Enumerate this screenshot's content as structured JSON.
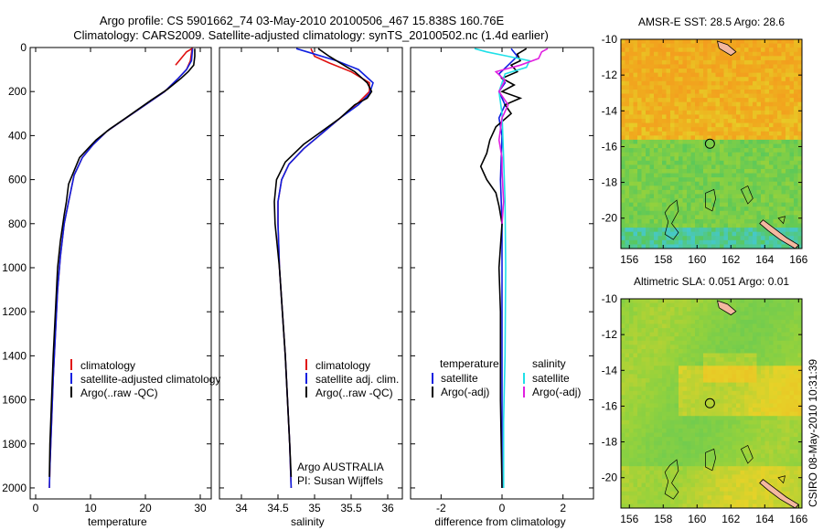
{
  "figure": {
    "title_line1": "Argo profile: CS 5901662_74 03-May-2010 20100506_467 15.838S 160.76E",
    "title_line2": "Climatology: CARS2009. Satellite-adjusted climatology: synTS_20100502.nc (1.4d earlier)",
    "footer_vertical": "CSIRO 08-May-2010 10:31:39",
    "credit_line1": "Argo AUSTRALIA",
    "credit_line2": "PI: Susan Wijffels"
  },
  "colors": {
    "climatology": "#e01010",
    "satellite": "#1020e0",
    "argo": "#000000",
    "salinity_satellite": "#20e0e8",
    "salinity_argo": "#e020e0"
  },
  "chart_data": [
    {
      "type": "line",
      "xlabel": "temperature",
      "xlim": [
        -1,
        32
      ],
      "ylim": [
        2050,
        0
      ],
      "xticks": [
        "0",
        "10",
        "20",
        "30"
      ],
      "xtick_values": [
        0,
        10,
        20,
        30
      ],
      "yticks": [
        "0",
        "200",
        "400",
        "600",
        "800",
        "1000",
        "1200",
        "1400",
        "1600",
        "1800",
        "2000"
      ],
      "ytick_values": [
        0,
        200,
        400,
        600,
        800,
        1000,
        1200,
        1400,
        1600,
        1800,
        2000
      ],
      "legend": [
        "climatology",
        "satellite-adjusted climatology",
        "Argo(..raw -QC)"
      ],
      "series": [
        {
          "name": "climatology",
          "color_key": "climatology",
          "points": [
            [
              25.5,
              80
            ],
            [
              26.5,
              50
            ],
            [
              27.5,
              20
            ],
            [
              28.5,
              5
            ],
            [
              28.2,
              60
            ],
            [
              27.5,
              100
            ],
            [
              26,
              140
            ],
            [
              23.5,
              200
            ],
            [
              20,
              260
            ],
            [
              16.5,
              320
            ],
            [
              13,
              380
            ],
            [
              10.5,
              440
            ],
            [
              8.5,
              500
            ],
            [
              7,
              580
            ],
            [
              6,
              700
            ],
            [
              5.2,
              800
            ],
            [
              4.5,
              950
            ],
            [
              4,
              1100
            ],
            [
              3.6,
              1300
            ],
            [
              3.2,
              1500
            ],
            [
              2.9,
              1700
            ],
            [
              2.6,
              1900
            ],
            [
              2.5,
              2000
            ]
          ]
        },
        {
          "name": "satellite-adjusted climatology",
          "color_key": "satellite",
          "points": [
            [
              28.6,
              5
            ],
            [
              28.4,
              60
            ],
            [
              27.5,
              100
            ],
            [
              26,
              140
            ],
            [
              23.5,
              200
            ],
            [
              20,
              260
            ],
            [
              16.5,
              320
            ],
            [
              13,
              380
            ],
            [
              10.5,
              440
            ],
            [
              8.5,
              500
            ],
            [
              7,
              580
            ],
            [
              6,
              700
            ],
            [
              5.2,
              800
            ],
            [
              4.5,
              950
            ],
            [
              4,
              1100
            ],
            [
              3.6,
              1300
            ],
            [
              3.2,
              1500
            ],
            [
              2.9,
              1700
            ],
            [
              2.6,
              1900
            ],
            [
              2.5,
              2000
            ]
          ]
        },
        {
          "name": "Argo(..raw -QC)",
          "color_key": "argo",
          "points": [
            [
              29,
              5
            ],
            [
              29,
              40
            ],
            [
              28.8,
              80
            ],
            [
              27.8,
              110
            ],
            [
              26.5,
              140
            ],
            [
              24,
              190
            ],
            [
              21,
              240
            ],
            [
              17,
              310
            ],
            [
              13.5,
              370
            ],
            [
              11,
              420
            ],
            [
              9.5,
              460
            ],
            [
              8,
              500
            ],
            [
              7,
              560
            ],
            [
              6,
              620
            ],
            [
              5.6,
              700
            ],
            [
              5.2,
              760
            ],
            [
              4.5,
              880
            ],
            [
              4,
              1000
            ],
            [
              3.6,
              1200
            ],
            [
              3.2,
              1400
            ],
            [
              2.9,
              1600
            ],
            [
              2.6,
              1800
            ],
            [
              2.5,
              1950
            ]
          ]
        }
      ]
    },
    {
      "type": "line",
      "xlabel": "salinity",
      "xlim": [
        33.7,
        36.2
      ],
      "ylim": [
        2050,
        0
      ],
      "xticks": [
        "34",
        "34.5",
        "35",
        "35.5",
        "36"
      ],
      "xtick_values": [
        34,
        34.5,
        35,
        35.5,
        36
      ],
      "legend": [
        "climatology",
        "satellite adj. clim.",
        "Argo(..raw -QC)"
      ],
      "series": [
        {
          "name": "climatology",
          "color_key": "climatology",
          "points": [
            [
              34.95,
              5
            ],
            [
              35.0,
              40
            ],
            [
              35.2,
              70
            ],
            [
              35.5,
              110
            ],
            [
              35.75,
              160
            ],
            [
              35.75,
              200
            ],
            [
              35.6,
              250
            ],
            [
              35.35,
              320
            ],
            [
              35.1,
              390
            ],
            [
              34.85,
              460
            ],
            [
              34.65,
              530
            ],
            [
              34.55,
              600
            ],
            [
              34.5,
              700
            ],
            [
              34.5,
              800
            ],
            [
              34.52,
              1000
            ],
            [
              34.56,
              1200
            ],
            [
              34.6,
              1400
            ],
            [
              34.63,
              1600
            ],
            [
              34.66,
              1800
            ],
            [
              34.68,
              2000
            ]
          ]
        },
        {
          "name": "satellite adj. clim.",
          "color_key": "satellite",
          "points": [
            [
              34.75,
              5
            ],
            [
              35.0,
              30
            ],
            [
              35.3,
              60
            ],
            [
              35.6,
              100
            ],
            [
              35.8,
              160
            ],
            [
              35.75,
              210
            ],
            [
              35.6,
              260
            ],
            [
              35.35,
              320
            ],
            [
              35.1,
              390
            ],
            [
              34.85,
              460
            ],
            [
              34.65,
              530
            ],
            [
              34.55,
              600
            ],
            [
              34.5,
              700
            ],
            [
              34.5,
              800
            ],
            [
              34.52,
              1000
            ],
            [
              34.56,
              1200
            ],
            [
              34.6,
              1400
            ],
            [
              34.63,
              1600
            ],
            [
              34.66,
              1800
            ],
            [
              34.68,
              2000
            ]
          ]
        },
        {
          "name": "Argo(..raw -QC)",
          "color_key": "argo",
          "points": [
            [
              35.05,
              5
            ],
            [
              35.2,
              40
            ],
            [
              35.35,
              70
            ],
            [
              35.55,
              110
            ],
            [
              35.72,
              160
            ],
            [
              35.78,
              200
            ],
            [
              35.72,
              230
            ],
            [
              35.55,
              260
            ],
            [
              35.35,
              320
            ],
            [
              35.1,
              380
            ],
            [
              34.85,
              440
            ],
            [
              34.6,
              520
            ],
            [
              34.48,
              600
            ],
            [
              34.45,
              700
            ],
            [
              34.46,
              800
            ],
            [
              34.52,
              1000
            ],
            [
              34.56,
              1200
            ],
            [
              34.6,
              1400
            ],
            [
              34.63,
              1600
            ],
            [
              34.66,
              1800
            ],
            [
              34.68,
              1950
            ]
          ]
        }
      ]
    },
    {
      "type": "line",
      "xlabel": "difference from climatology",
      "xlim": [
        -3,
        3
      ],
      "ylim": [
        2050,
        0
      ],
      "xticks": [
        "-2",
        "0",
        "2"
      ],
      "xtick_values": [
        -2,
        0,
        2
      ],
      "legend_left_title": "temperature",
      "legend_left": [
        "satellite",
        "Argo(-adj)"
      ],
      "legend_right_title": "salinity",
      "legend_right": [
        "satellite",
        "Argo(-adj)"
      ],
      "series": [
        {
          "name": "satellite",
          "group": "temperature",
          "color_key": "satellite",
          "points": [
            [
              0.3,
              5
            ],
            [
              0.5,
              40
            ],
            [
              0.2,
              80
            ],
            [
              -0.1,
              120
            ],
            [
              0.1,
              160
            ],
            [
              -0.1,
              200
            ],
            [
              0.1,
              260
            ],
            [
              -0.1,
              320
            ],
            [
              0,
              400
            ],
            [
              -0.05,
              600
            ],
            [
              0,
              800
            ],
            [
              0,
              1200
            ],
            [
              0,
              1600
            ],
            [
              0,
              2000
            ]
          ]
        },
        {
          "name": "Argo(-adj)",
          "group": "temperature",
          "color_key": "argo",
          "points": [
            [
              0.8,
              5
            ],
            [
              0.5,
              30
            ],
            [
              0.6,
              60
            ],
            [
              0.3,
              80
            ],
            [
              0.5,
              110
            ],
            [
              0.0,
              140
            ],
            [
              0.4,
              170
            ],
            [
              0.0,
              200
            ],
            [
              0.6,
              230
            ],
            [
              0.1,
              260
            ],
            [
              0.3,
              300
            ],
            [
              -0.2,
              360
            ],
            [
              -0.4,
              420
            ],
            [
              -0.5,
              480
            ],
            [
              -0.7,
              540
            ],
            [
              -0.5,
              600
            ],
            [
              -0.2,
              660
            ],
            [
              -0.1,
              720
            ],
            [
              0,
              800
            ],
            [
              -0.1,
              1000
            ],
            [
              -0.05,
              1200
            ],
            [
              -0.05,
              1600
            ],
            [
              0,
              2000
            ]
          ]
        },
        {
          "name": "satellite",
          "group": "salinity",
          "color_key": "salinity_satellite",
          "points": [
            [
              -0.9,
              5
            ],
            [
              -0.5,
              20
            ],
            [
              0.2,
              40
            ],
            [
              0.9,
              60
            ],
            [
              0.8,
              90
            ],
            [
              0.1,
              120
            ],
            [
              0.0,
              160
            ],
            [
              -0.1,
              200
            ],
            [
              0.0,
              300
            ],
            [
              0.05,
              500
            ],
            [
              0.1,
              700
            ],
            [
              0.12,
              1000
            ],
            [
              0.1,
              1400
            ],
            [
              0.05,
              1700
            ],
            [
              0.05,
              2000
            ]
          ]
        },
        {
          "name": "Argo(-adj)",
          "group": "salinity",
          "color_key": "salinity_argo",
          "points": [
            [
              1.5,
              5
            ],
            [
              1.3,
              20
            ],
            [
              1.2,
              50
            ],
            [
              0.6,
              80
            ],
            [
              -0.2,
              110
            ],
            [
              0.1,
              150
            ],
            [
              -0.1,
              200
            ],
            [
              0.2,
              260
            ],
            [
              0.0,
              320
            ],
            [
              -0.1,
              420
            ],
            [
              0.0,
              500
            ],
            [
              0.0,
              560
            ],
            [
              0.05,
              700
            ],
            [
              0.0,
              800
            ]
          ]
        }
      ]
    },
    {
      "type": "heatmap",
      "title": "AMSR-E SST: 28.5  Argo: 28.6",
      "xlim": [
        155.5,
        166.2
      ],
      "ylim": [
        -21.7,
        -10
      ],
      "xticks": [
        "156",
        "158",
        "160",
        "162",
        "164",
        "166"
      ],
      "xtick_values": [
        156,
        158,
        160,
        162,
        164,
        166
      ],
      "yticks": [
        "-10",
        "-12",
        "-14",
        "-16",
        "-18",
        "-20"
      ],
      "ytick_values": [
        -10,
        -12,
        -14,
        -16,
        -18,
        -20
      ],
      "marker": {
        "lon": 160.76,
        "lat": -15.838
      }
    },
    {
      "type": "heatmap",
      "title": "Altimetric SLA: 0.051  Argo: 0.01",
      "xlim": [
        155.5,
        166.2
      ],
      "ylim": [
        -21.7,
        -10
      ],
      "xticks": [
        "156",
        "158",
        "160",
        "162",
        "164",
        "166"
      ],
      "xtick_values": [
        156,
        158,
        160,
        162,
        164,
        166
      ],
      "yticks": [
        "-10",
        "-12",
        "-14",
        "-16",
        "-18",
        "-20"
      ],
      "ytick_values": [
        -10,
        -12,
        -14,
        -16,
        -18,
        -20
      ],
      "marker": {
        "lon": 160.76,
        "lat": -15.838
      }
    }
  ]
}
